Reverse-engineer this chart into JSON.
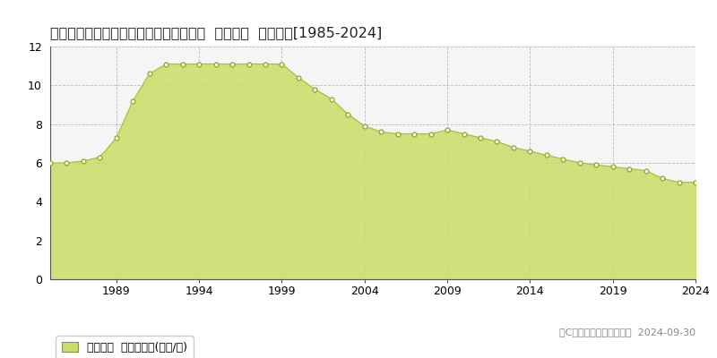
{
  "title": "兵庫県宝塚市大原野字森谷２９番１２外  公示地価  地価推移[1985-2024]",
  "years": [
    1985,
    1986,
    1987,
    1988,
    1989,
    1990,
    1991,
    1992,
    1993,
    1994,
    1995,
    1996,
    1997,
    1998,
    1999,
    2000,
    2001,
    2002,
    2003,
    2004,
    2005,
    2006,
    2007,
    2008,
    2009,
    2010,
    2011,
    2012,
    2013,
    2014,
    2015,
    2016,
    2017,
    2018,
    2019,
    2020,
    2021,
    2022,
    2023,
    2024
  ],
  "values": [
    6.0,
    6.0,
    6.1,
    6.3,
    7.3,
    9.2,
    10.6,
    11.1,
    11.1,
    11.1,
    11.1,
    11.1,
    11.1,
    11.1,
    11.1,
    10.4,
    9.8,
    9.3,
    8.5,
    7.9,
    7.6,
    7.5,
    7.5,
    7.5,
    7.7,
    7.5,
    7.3,
    7.1,
    6.8,
    6.6,
    6.4,
    6.2,
    6.0,
    5.9,
    5.8,
    5.7,
    5.6,
    5.2,
    5.0,
    5.0
  ],
  "fill_color": "#ccdd66",
  "fill_alpha": 0.85,
  "line_color": "#aabb44",
  "marker_facecolor": "#ffffff",
  "marker_edgecolor": "#99aa33",
  "bg_color": "#ffffff",
  "plot_bg_color": "#f5f5f5",
  "grid_color": "#bbbbbb",
  "spine_color": "#555555",
  "ylim": [
    0,
    12
  ],
  "yticks": [
    0,
    2,
    4,
    6,
    8,
    10,
    12
  ],
  "xtick_years": [
    1989,
    1994,
    1999,
    2004,
    2009,
    2014,
    2019,
    2024
  ],
  "legend_label": "公示地価  平均坪単価(万円/坪)",
  "copyright_text": "（C）土地価格ドットコム  2024-09-30",
  "title_fontsize": 11.5,
  "tick_fontsize": 9,
  "legend_fontsize": 9,
  "copyright_fontsize": 8
}
